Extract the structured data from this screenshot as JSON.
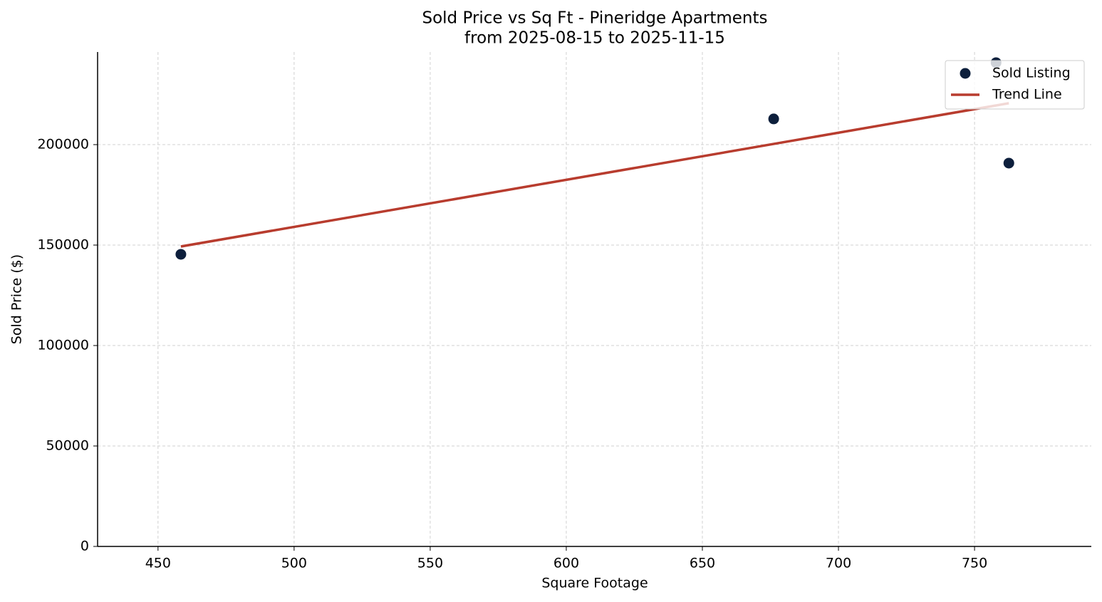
{
  "chart_data": {
    "type": "scatter",
    "title": "Sold Price vs Sq Ft - Pineridge Apartments",
    "subtitle": "from 2025-08-15 to 2025-11-15",
    "x_label": "Square Footage",
    "y_label": "Sold Price ($)",
    "series": [
      {
        "name": "Sold Listing",
        "type": "scatter",
        "color": "#0d1f3c",
        "x": [
          458.4,
          676.2,
          757.9,
          762.6
        ],
        "values": [
          145400,
          212800,
          240800,
          190800
        ]
      },
      {
        "name": "Trend Line",
        "type": "line",
        "color": "#b83c2e",
        "x": [
          458.4,
          762.6
        ],
        "values": [
          149300,
          220600
        ]
      }
    ],
    "xlim": [
      427.8,
      792.9
    ],
    "xticks": [
      450,
      500,
      550,
      600,
      650,
      700,
      750
    ],
    "ylim": [
      0,
      246100
    ],
    "yticks": [
      0,
      50000,
      100000,
      150000,
      200000
    ],
    "grid": true,
    "legend": "upper right"
  }
}
